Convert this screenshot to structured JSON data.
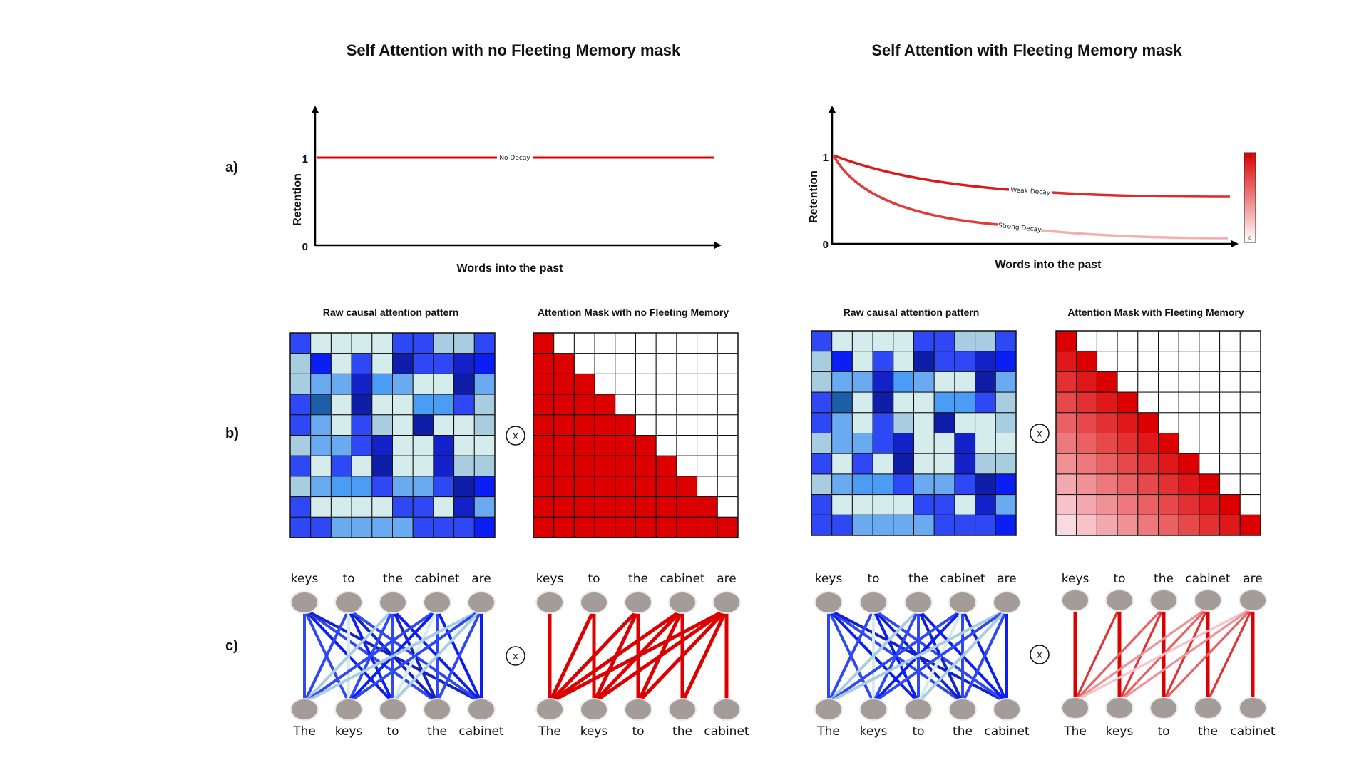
{
  "panels": [
    {
      "title": "Self Attention with no Fleeting Memory mask",
      "retention": {
        "ylabel": "Retention",
        "xlabel": "Words into the past",
        "tick_1": "1",
        "tick_0": "0",
        "curves": [
          {
            "label": "No Decay",
            "kind": "none"
          }
        ]
      },
      "raw_title": "Raw causal attention pattern",
      "mask_title": "Attention Mask with no Fleeting Memory",
      "fleeting": false
    },
    {
      "title": "Self Attention with Fleeting Memory mask",
      "retention": {
        "ylabel": "Retention",
        "xlabel": "Words into the past",
        "tick_1": "1",
        "tick_0": "0",
        "curves": [
          {
            "label": "Weak Decay",
            "kind": "weak"
          },
          {
            "label": "Strong Decay",
            "kind": "strong"
          }
        ],
        "colorbar": {
          "top": "1",
          "bottom": "0"
        }
      },
      "raw_title": "Raw causal attention pattern",
      "mask_title": "Attention Mask with Fleeting Memory",
      "fleeting": true
    }
  ],
  "row_labels": [
    "a)",
    "b)",
    "c)"
  ],
  "multiply_symbol": "x",
  "top_words": [
    "keys",
    "to",
    "the",
    "cabinet",
    "are"
  ],
  "bottom_words": [
    "The",
    "keys",
    "to",
    "the",
    "cabinet"
  ],
  "colors": {
    "blue_scale": [
      "#d4ecec",
      "#a9cde0",
      "#6aaaf0",
      "#4a9cf5",
      "#2e48f5",
      "#0a1ef5",
      "#1322c8",
      "#0e1ea8",
      "#1a5fa8"
    ],
    "red": "#dd0000",
    "grid_line": "#111111",
    "node": "#a39c98"
  },
  "raw_pattern": [
    [
      4,
      0,
      0,
      0,
      0,
      4,
      4,
      1,
      1,
      4
    ],
    [
      1,
      5,
      0,
      4,
      0,
      7,
      4,
      4,
      6,
      5
    ],
    [
      1,
      2,
      2,
      6,
      3,
      2,
      0,
      0,
      7,
      2
    ],
    [
      4,
      8,
      0,
      7,
      0,
      0,
      3,
      3,
      4,
      1
    ],
    [
      4,
      2,
      0,
      4,
      1,
      0,
      7,
      0,
      0,
      1
    ],
    [
      1,
      2,
      2,
      4,
      6,
      0,
      0,
      6,
      0,
      0
    ],
    [
      4,
      0,
      4,
      0,
      7,
      0,
      0,
      6,
      1,
      1
    ],
    [
      1,
      2,
      3,
      3,
      4,
      2,
      2,
      4,
      7,
      5
    ],
    [
      4,
      0,
      0,
      0,
      0,
      4,
      4,
      0,
      6,
      2
    ],
    [
      4,
      4,
      2,
      2,
      2,
      2,
      4,
      4,
      4,
      5
    ]
  ],
  "connections_raw": [
    [
      0,
      0,
      4
    ],
    [
      0,
      1,
      4
    ],
    [
      0,
      2,
      5
    ],
    [
      0,
      3,
      4
    ],
    [
      0,
      4,
      6
    ],
    [
      1,
      0,
      4
    ],
    [
      1,
      1,
      0
    ],
    [
      1,
      2,
      5
    ],
    [
      1,
      3,
      6
    ],
    [
      1,
      4,
      4
    ],
    [
      2,
      0,
      1
    ],
    [
      2,
      1,
      4
    ],
    [
      2,
      2,
      4
    ],
    [
      2,
      3,
      6
    ],
    [
      2,
      4,
      5
    ],
    [
      3,
      0,
      4
    ],
    [
      3,
      1,
      5
    ],
    [
      3,
      2,
      0
    ],
    [
      3,
      3,
      4
    ],
    [
      3,
      4,
      5
    ],
    [
      4,
      0,
      1
    ],
    [
      4,
      1,
      4
    ],
    [
      4,
      2,
      1
    ],
    [
      4,
      3,
      4
    ],
    [
      4,
      4,
      5
    ]
  ]
}
